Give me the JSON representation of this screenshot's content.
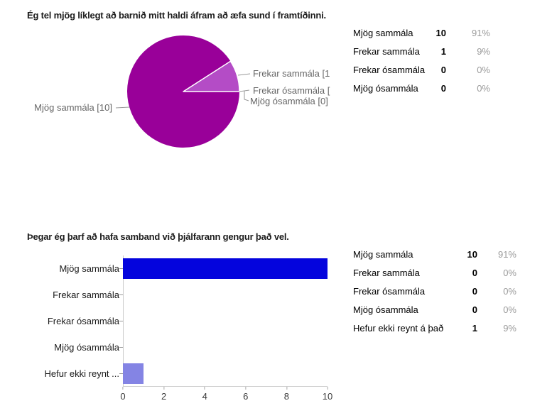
{
  "q1": {
    "title": "Ég tel mjög líklegt að barnið mitt haldi áfram að æfa sund í framtíðinni.",
    "pie": {
      "label_main": "Mjög sammála [10]",
      "label_second": "Frekar sammála [1",
      "label_third": "Frekar ósammála [",
      "label_fourth": "Mjög ósammála [0]",
      "color_main": "#990099",
      "color_second": "#b44cc6"
    },
    "table": {
      "rows": [
        {
          "label": "Mjög sammála",
          "count": "10",
          "pct": "91%"
        },
        {
          "label": "Frekar sammála",
          "count": "1",
          "pct": "9%"
        },
        {
          "label": "Frekar ósammála",
          "count": "0",
          "pct": "0%"
        },
        {
          "label": "Mjög ósammála",
          "count": "0",
          "pct": "0%"
        }
      ]
    }
  },
  "q2": {
    "title": "Þegar ég þarf að hafa samband við þjálfarann gengur það vel.",
    "bar": {
      "categories": [
        "Mjög sammála",
        "Frekar sammála",
        "Frekar ósammála",
        "Mjög ósammála",
        "Hefur ekki reynt ..."
      ],
      "ticks": [
        "0",
        "2",
        "4",
        "6",
        "8",
        "10"
      ]
    },
    "table": {
      "rows": [
        {
          "label": "Mjög sammála",
          "count": "10",
          "pct": "91%"
        },
        {
          "label": "Frekar sammála",
          "count": "0",
          "pct": "0%"
        },
        {
          "label": "Frekar ósammála",
          "count": "0",
          "pct": "0%"
        },
        {
          "label": "Mjög ósammála",
          "count": "0",
          "pct": "0%"
        },
        {
          "label": "Hefur ekki reynt á það",
          "count": "1",
          "pct": "9%"
        }
      ]
    }
  },
  "chart_data": [
    {
      "type": "pie",
      "title": "Ég tel mjög líklegt að barnið mitt haldi áfram að æfa sund í framtíðinni.",
      "categories": [
        "Mjög sammála",
        "Frekar sammála",
        "Frekar ósammála",
        "Mjög ósammála"
      ],
      "values": [
        10,
        1,
        0,
        0
      ],
      "percents": [
        91,
        9,
        0,
        0
      ],
      "colors": [
        "#990099",
        "#b44cc6"
      ],
      "legend_position": "callout-labels",
      "callout_labels_visible": [
        "Mjög sammála [10]",
        "Frekar sammála [1",
        "Frekar ósammála [",
        "Mjög ósammála [0]"
      ]
    },
    {
      "type": "bar",
      "orientation": "horizontal",
      "title": "Þegar ég þarf að hafa samband við þjálfarann gengur það vel.",
      "categories": [
        "Mjög sammála",
        "Frekar sammála",
        "Frekar ósammála",
        "Mjög ósammála",
        "Hefur ekki reynt á það"
      ],
      "values": [
        10,
        0,
        0,
        0,
        1
      ],
      "percents": [
        91,
        0,
        0,
        0,
        9
      ],
      "xlim": [
        0,
        10
      ],
      "xticks": [
        0,
        2,
        4,
        6,
        8,
        10
      ],
      "grid": false,
      "bar_colors": [
        "#0404dd",
        "#0404dd",
        "#0404dd",
        "#0404dd",
        "#8484e4"
      ]
    }
  ]
}
